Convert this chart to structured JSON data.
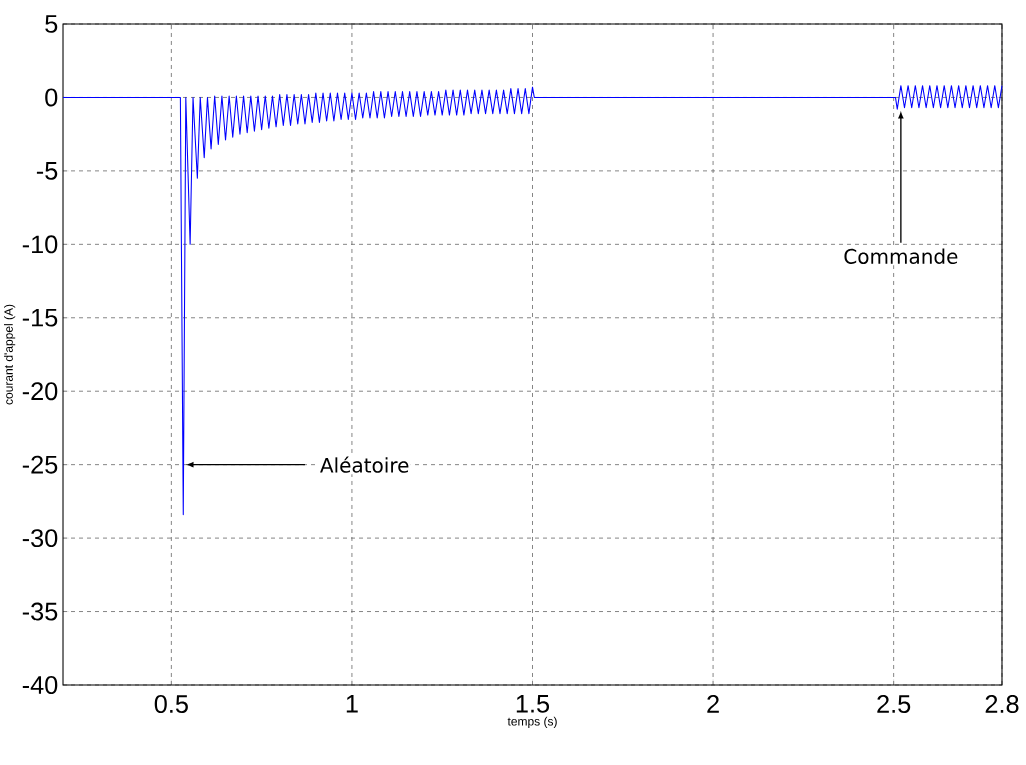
{
  "chart_data": {
    "type": "line",
    "xlabel": "temps (s)",
    "ylabel": "courant d'appel (A)",
    "xlim": [
      0.2,
      2.8
    ],
    "ylim": [
      -40,
      5
    ],
    "xticks": [
      0.5,
      1,
      1.5,
      2,
      2.5,
      2.8
    ],
    "yticks": [
      -40,
      -35,
      -30,
      -25,
      -20,
      -15,
      -10,
      -5,
      0,
      5
    ],
    "grid": true,
    "line_style": "solid",
    "marker": "none",
    "annotations": [
      {
        "text": "Aléatoire",
        "x": 0.54,
        "y": -25
      },
      {
        "text": "Commande",
        "x": 2.52,
        "y": -0.9
      }
    ],
    "series": [
      {
        "color": "#0000ff",
        "x": [
          0.2,
          0.525,
          0.533,
          0.54,
          0.552,
          0.56,
          0.572,
          0.58,
          0.591,
          0.6,
          0.61,
          0.62,
          0.63,
          0.64,
          0.65,
          0.66,
          0.67,
          0.68,
          0.69,
          0.7,
          0.71,
          0.72,
          0.73,
          0.74,
          0.75,
          0.76,
          0.77,
          0.78,
          0.79,
          0.8,
          0.81,
          0.82,
          0.83,
          0.84,
          0.85,
          0.86,
          0.87,
          0.88,
          0.89,
          0.9,
          0.91,
          0.92,
          0.93,
          0.94,
          0.95,
          0.96,
          0.97,
          0.98,
          0.99,
          1.0,
          1.01,
          1.02,
          1.03,
          1.04,
          1.05,
          1.06,
          1.07,
          1.08,
          1.09,
          1.1,
          1.11,
          1.12,
          1.13,
          1.14,
          1.15,
          1.16,
          1.17,
          1.18,
          1.19,
          1.2,
          1.21,
          1.22,
          1.23,
          1.24,
          1.25,
          1.26,
          1.27,
          1.28,
          1.29,
          1.3,
          1.31,
          1.32,
          1.33,
          1.34,
          1.35,
          1.36,
          1.37,
          1.38,
          1.39,
          1.4,
          1.41,
          1.42,
          1.43,
          1.44,
          1.45,
          1.46,
          1.47,
          1.48,
          1.49,
          1.5,
          1.505,
          2.505,
          2.51,
          2.52,
          2.53,
          2.54,
          2.55,
          2.56,
          2.57,
          2.58,
          2.59,
          2.6,
          2.61,
          2.62,
          2.63,
          2.64,
          2.65,
          2.66,
          2.67,
          2.68,
          2.69,
          2.7,
          2.71,
          2.72,
          2.73,
          2.74,
          2.75,
          2.76,
          2.77,
          2.78,
          2.79,
          2.8
        ],
        "values": [
          0,
          0,
          -28.4,
          0,
          -10,
          0,
          -5.5,
          0,
          -4.1,
          0,
          -3.5,
          0.1,
          -3.2,
          0.1,
          -2.9,
          0.1,
          -2.7,
          0.1,
          -2.5,
          0.1,
          -2.4,
          0.1,
          -2.3,
          0.1,
          -2.2,
          0.1,
          -2.1,
          0.1,
          -2.0,
          0.2,
          -1.9,
          0.2,
          -1.9,
          0.2,
          -1.8,
          0.2,
          -1.8,
          0.2,
          -1.7,
          0.3,
          -1.7,
          0.3,
          -1.6,
          0.3,
          -1.6,
          0.3,
          -1.5,
          0.3,
          -1.5,
          0.3,
          -1.5,
          0.3,
          -1.4,
          0.3,
          -1.4,
          0.4,
          -1.4,
          0.4,
          -1.4,
          0.4,
          -1.3,
          0.4,
          -1.3,
          0.4,
          -1.3,
          0.4,
          -1.3,
          0.4,
          -1.3,
          0.4,
          -1.2,
          0.4,
          -1.2,
          0.4,
          -1.2,
          0.5,
          -1.2,
          0.5,
          -1.2,
          0.5,
          -1.2,
          0.5,
          -1.1,
          0.5,
          -1.1,
          0.5,
          -1.1,
          0.5,
          -1.1,
          0.5,
          -1.1,
          0.5,
          -1.1,
          0.6,
          -1.1,
          0.6,
          -1.1,
          0.6,
          -1.1,
          0.7,
          0,
          0,
          -0.8,
          0.8,
          -0.7,
          0.8,
          -0.7,
          0.8,
          -0.7,
          0.8,
          -0.7,
          0.8,
          -0.7,
          0.8,
          -0.7,
          0.8,
          -0.7,
          0.8,
          -0.7,
          0.8,
          -0.7,
          0.8,
          -0.7,
          0.8,
          -0.7,
          0.8,
          -0.7,
          0.8,
          -0.7,
          0.8,
          -0.7,
          0.8
        ]
      }
    ]
  }
}
